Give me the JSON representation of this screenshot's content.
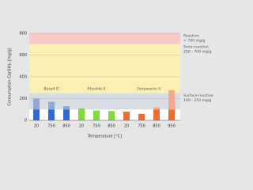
{
  "chart_data": {
    "type": "stacked-bar",
    "ylabel": "Consumption Ca(OH)₂ [mg/g]",
    "xlabel": "Temperature [°C]",
    "ylim": [
      0,
      800
    ],
    "yticks": [
      0,
      200,
      400,
      600,
      800
    ],
    "grid": true,
    "bands": [
      {
        "from": 700,
        "to": 800,
        "color": "#fbc8c8",
        "label": "Reactive",
        "range": "> 700 mg/g"
      },
      {
        "from": 250,
        "to": 700,
        "color": "#fcefb4",
        "label": "Semi-reactive",
        "range": "250 - 700 mg/g"
      },
      {
        "from": 100,
        "to": 250,
        "color": "#d8dde3",
        "label": "Surface-reactive",
        "range": "100 - 250 mg/g"
      }
    ],
    "groups": [
      {
        "name": "Basalt D",
        "color": "#2f6ad0",
        "light_color": "#8ea8d8",
        "categories": [
          "20",
          "750",
          "850"
        ],
        "base": [
          100,
          100,
          100
        ],
        "extra": [
          100,
          70,
          30
        ]
      },
      {
        "name": "Rhyolite E",
        "color": "#7fdc3c",
        "light_color": "#b8ec94",
        "categories": [
          "20",
          "750",
          "850"
        ],
        "base": [
          110,
          90,
          85
        ],
        "extra": [
          null,
          null,
          null
        ]
      },
      {
        "name": "Greywacke G",
        "color": "#ef6e2e",
        "light_color": "#f0a98a",
        "categories": [
          "20",
          "750",
          "850",
          "950"
        ],
        "base": [
          80,
          60,
          100,
          100
        ],
        "extra": [
          null,
          null,
          20,
          175
        ]
      }
    ]
  }
}
